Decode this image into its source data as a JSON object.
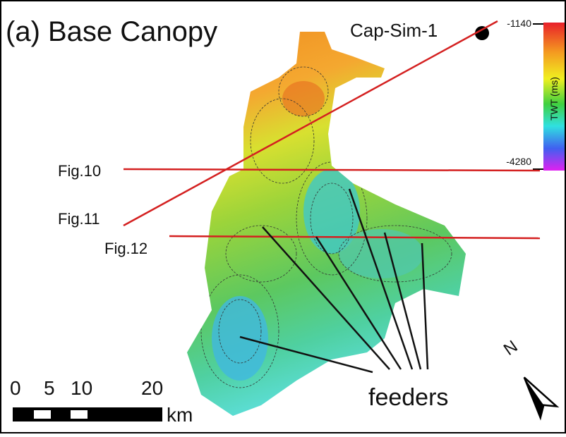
{
  "title": "(a) Base Canopy",
  "well": {
    "label": "Cap-Sim-1"
  },
  "colorbar": {
    "max_label": "-1140",
    "min_label": "-4280",
    "title": "TWT (ms)"
  },
  "sections": [
    "Fig.10",
    "Fig.11",
    "Fig.12"
  ],
  "annotation": "feeders",
  "scale_bar": {
    "ticks": [
      "0",
      "5",
      "10",
      "20"
    ],
    "unit": "km"
  },
  "north": "N"
}
